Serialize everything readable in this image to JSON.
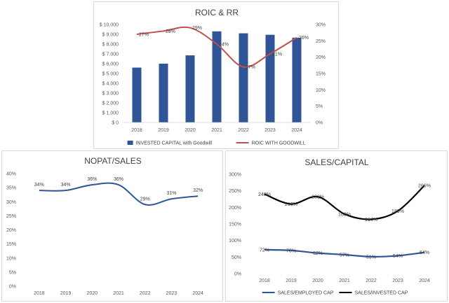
{
  "chart_data": [
    {
      "id": "roic",
      "type": "bar+line",
      "title": "ROIC & RR",
      "categories": [
        "2018",
        "2019",
        "2020",
        "2021",
        "2022",
        "2023",
        "2024"
      ],
      "series": [
        {
          "name": "INVESTED CAPITAL with Goodwill",
          "kind": "bar",
          "axis": "left",
          "color": "#2f5597",
          "values": [
            5600,
            6000,
            6850,
            9300,
            9100,
            8950,
            8650
          ]
        },
        {
          "name": "ROIC WITH GOODWILL",
          "kind": "line",
          "axis": "right",
          "color": "#c0504d",
          "values": [
            27,
            28,
            29,
            24,
            17,
            21,
            26
          ],
          "labels": [
            "27%",
            "28%",
            "29%",
            "24%",
            "17%",
            "21%",
            "26%"
          ]
        }
      ],
      "left_axis": {
        "min": 0,
        "max": 10000,
        "step": 1000,
        "tick_labels": [
          "$ 0",
          "$ 1.000",
          "$ 2.000",
          "$ 3.000",
          "$ 4.000",
          "$ 5.000",
          "$ 6.000",
          "$ 7.000",
          "$ 8.000",
          "$ 9.000",
          "$ 10.000"
        ]
      },
      "right_axis": {
        "min": 0,
        "max": 30,
        "step": 5,
        "tick_labels": [
          "0%",
          "5%",
          "10%",
          "15%",
          "20%",
          "25%",
          "30%"
        ]
      },
      "legend": "bottom"
    },
    {
      "id": "nopat",
      "type": "line",
      "title": "NOPAT/SALES",
      "categories": [
        "2018",
        "2019",
        "2020",
        "2021",
        "2022",
        "2023",
        "2024"
      ],
      "series": [
        {
          "name": "",
          "color": "#2f5597",
          "values": [
            34,
            34,
            36,
            36,
            29,
            31,
            32
          ],
          "labels": [
            "34%",
            "34%",
            "36%",
            "36%",
            "29%",
            "31%",
            "32%"
          ]
        }
      ],
      "y_axis": {
        "min": 0,
        "max": 40,
        "step": 5,
        "tick_labels": [
          "0%",
          "5%",
          "10%",
          "15%",
          "20%",
          "25%",
          "30%",
          "35%",
          "40%"
        ]
      },
      "legend": "none"
    },
    {
      "id": "sales",
      "type": "line",
      "title": "SALES/CAPITAL",
      "categories": [
        "2018",
        "2019",
        "2020",
        "2021",
        "2022",
        "2023",
        "2024"
      ],
      "series": [
        {
          "name": "SALES/EMPLOYED CAP",
          "color": "#2f5597",
          "values": [
            72,
            70,
            62,
            57,
            51,
            54,
            64
          ],
          "labels": [
            "72%",
            "70%",
            "62%",
            "57%",
            "51%",
            "54%",
            "64%"
          ]
        },
        {
          "name": "SALES/INVESTED CAP",
          "color": "#000000",
          "values": [
            240,
            210,
            232,
            180,
            164,
            189,
            266
          ],
          "labels": [
            "240%",
            "210%",
            "232%",
            "180%",
            "164%",
            "189%",
            "266%"
          ]
        }
      ],
      "y_axis": {
        "min": 0,
        "max": 300,
        "step": 50,
        "tick_labels": [
          "0%",
          "50%",
          "100%",
          "150%",
          "200%",
          "250%",
          "300%"
        ]
      },
      "legend": "bottom"
    }
  ]
}
